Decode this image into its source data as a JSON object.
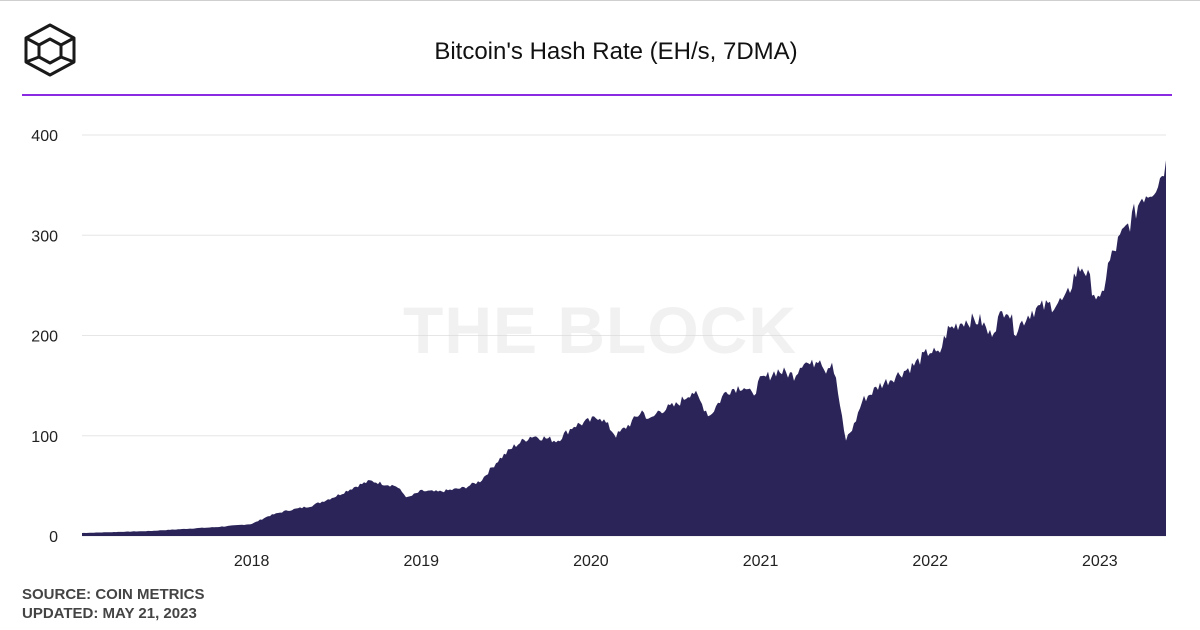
{
  "header": {
    "title": "Bitcoin's Hash Rate (EH/s, 7DMA)",
    "logo_icon": "the-block-cube-logo",
    "rule_color": "#8a2be2"
  },
  "watermark": {
    "text": "THE BLOCK"
  },
  "footer": {
    "source": "SOURCE: COIN METRICS",
    "updated": "UPDATED: MAY 21, 2023"
  },
  "chart_data": {
    "type": "area",
    "title": "Bitcoin's Hash Rate (EH/s, 7DMA)",
    "xlabel": "",
    "ylabel": "",
    "ylim": [
      0,
      400
    ],
    "yticks": [
      0,
      100,
      200,
      300,
      400
    ],
    "xticks": [
      "2018",
      "2019",
      "2020",
      "2021",
      "2022",
      "2023"
    ],
    "xlim": [
      2017.0,
      2023.39
    ],
    "grid": true,
    "fill_color": "#2a2459",
    "series": [
      {
        "x": [
          2017.0,
          2017.2,
          2017.4,
          2017.6,
          2017.8,
          2018.0,
          2018.1,
          2018.2,
          2018.35,
          2018.5,
          2018.62,
          2018.7,
          2018.78,
          2018.85,
          2018.92,
          2019.0,
          2019.1,
          2019.25,
          2019.35,
          2019.45,
          2019.55,
          2019.65,
          2019.72,
          2019.8,
          2019.9,
          2020.0,
          2020.05,
          2020.15,
          2020.25,
          2020.3,
          2020.35,
          2020.4,
          2020.5,
          2020.6,
          2020.7,
          2020.8,
          2020.9,
          2020.95,
          2021.0,
          2021.1,
          2021.2,
          2021.25,
          2021.3,
          2021.35,
          2021.38,
          2021.42,
          2021.45,
          2021.5,
          2021.55,
          2021.6,
          2021.7,
          2021.8,
          2021.9,
          2022.0,
          2022.05,
          2022.1,
          2022.2,
          2022.3,
          2022.35,
          2022.45,
          2022.5,
          2022.6,
          2022.7,
          2022.8,
          2022.85,
          2022.9,
          2022.95,
          2023.0,
          2023.05,
          2023.1,
          2023.2,
          2023.25,
          2023.3,
          2023.35,
          2023.38
        ],
        "y": [
          3,
          4,
          5,
          7,
          9,
          12,
          20,
          25,
          30,
          40,
          50,
          55,
          52,
          50,
          38,
          45,
          44,
          48,
          55,
          75,
          90,
          100,
          98,
          95,
          110,
          115,
          120,
          100,
          115,
          125,
          115,
          125,
          130,
          145,
          120,
          145,
          150,
          140,
          155,
          165,
          160,
          175,
          170,
          180,
          165,
          175,
          150,
          95,
          110,
          135,
          150,
          160,
          170,
          185,
          180,
          205,
          215,
          215,
          200,
          230,
          205,
          225,
          230,
          235,
          260,
          270,
          250,
          230,
          270,
          290,
          320,
          340,
          345,
          355,
          370
        ]
      }
    ]
  }
}
